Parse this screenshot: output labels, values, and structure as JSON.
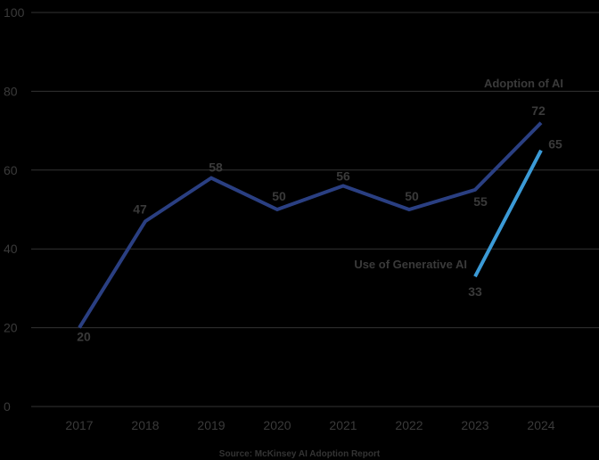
{
  "chart_data": {
    "type": "line",
    "title": "",
    "xlabel": "",
    "ylabel": "",
    "ylim": [
      0,
      100
    ],
    "yticks": [
      0,
      20,
      40,
      60,
      80,
      100
    ],
    "grid": true,
    "categories": [
      "2017",
      "2018",
      "2019",
      "2020",
      "2021",
      "2022",
      "2023",
      "2024"
    ],
    "series": [
      {
        "name": "Adoption of AI",
        "color": "#2a3f82",
        "x": [
          "2017",
          "2018",
          "2019",
          "2020",
          "2021",
          "2022",
          "2023",
          "2024"
        ],
        "values": [
          20,
          47,
          58,
          50,
          56,
          50,
          55,
          72
        ],
        "labels": [
          "20",
          "47",
          "58",
          "50",
          "56",
          "50",
          "55",
          "72"
        ]
      },
      {
        "name": "Use of Generative AI",
        "color": "#3b9ad6",
        "x": [
          "2023",
          "2024"
        ],
        "values": [
          33,
          65
        ],
        "labels": [
          "33",
          "65"
        ]
      }
    ],
    "source": "Source: McKinsey AI Adoption Report"
  },
  "colors": {
    "background": "#000000",
    "gridline": "#333333",
    "text": "#3a3a3a"
  }
}
